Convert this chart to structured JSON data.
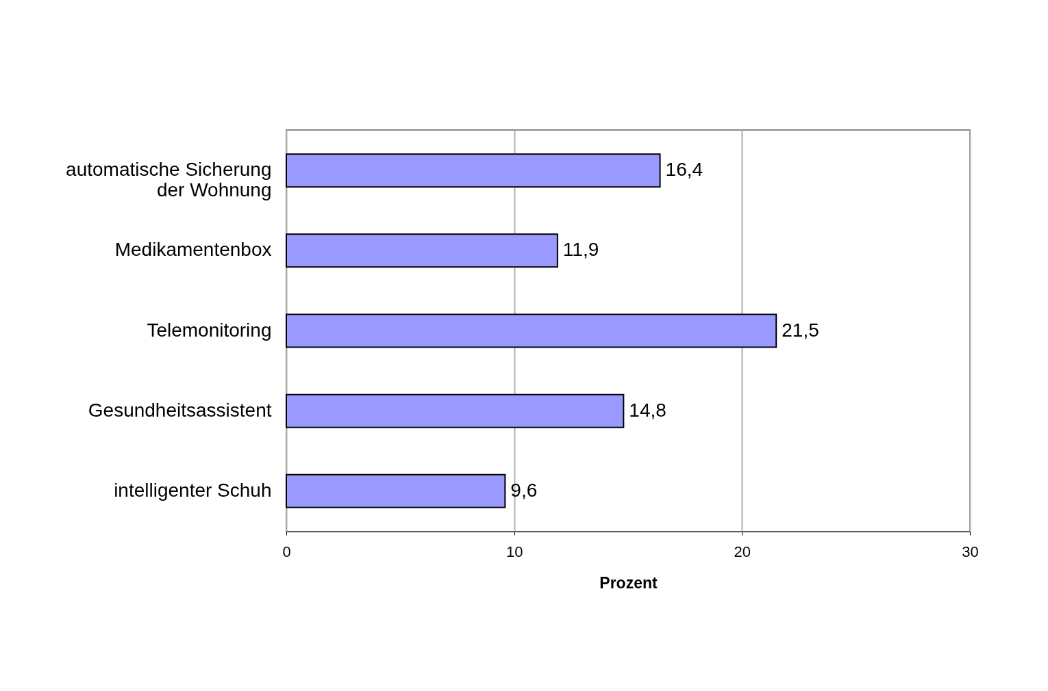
{
  "chart_data": {
    "type": "bar",
    "orientation": "horizontal",
    "xlabel": "Prozent",
    "categories": [
      "automatische Sicherung der Wohnung",
      "Medikamentenbox",
      "Telemonitoring",
      "Gesundheitsassistent",
      "intelligenter Schuh"
    ],
    "values": [
      16.4,
      11.9,
      21.5,
      14.8,
      9.6
    ],
    "value_labels": [
      "16,4",
      "11,9",
      "21,5",
      "14,8",
      "9,6"
    ],
    "color": "#9999ff",
    "xlim": [
      0,
      30
    ],
    "xticks": [
      0,
      10,
      20,
      30
    ],
    "grid": "x"
  }
}
